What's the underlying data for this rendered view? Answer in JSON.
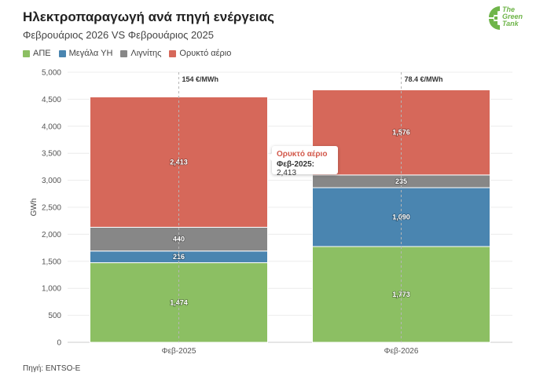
{
  "header": {
    "title": "Ηλεκτροπαραγωγή ανά πηγή ενέργειας",
    "subtitle": "Φεβρουάριος 2026 VS Φεβρουάριος 2025"
  },
  "logo": {
    "line1": "The",
    "line2": "Green",
    "line3": "Tank"
  },
  "source": "Πηγή: ENTSO-E",
  "colors": {
    "ape": "#8cbf63",
    "hydro": "#4a85b0",
    "lignite": "#878787",
    "gas": "#d6685a"
  },
  "tooltip": {
    "title": "Ορυκτό αέριο",
    "label": "Φεβ-2025:",
    "value": "2,413"
  },
  "chart_data": {
    "type": "bar",
    "stacked": true,
    "title": "Ηλεκτροπαραγωγή ανά πηγή ενέργειας",
    "ylabel": "GWh",
    "xlabel": "",
    "ylim": [
      0,
      5000
    ],
    "yticks": [
      0,
      500,
      1000,
      1500,
      2000,
      2500,
      3000,
      3500,
      4000,
      4500,
      5000
    ],
    "ytick_labels": [
      "0",
      "500",
      "1,000",
      "1,500",
      "2,000",
      "2,500",
      "3,000",
      "3,500",
      "4,000",
      "4,500",
      "5,000"
    ],
    "categories": [
      "Φεβ-2025",
      "Φεβ-2026"
    ],
    "annotations": [
      "154 €/MWh",
      "78.4 €/MWh"
    ],
    "series": [
      {
        "name": "ΑΠΕ",
        "key": "ape",
        "values": [
          1474,
          1773
        ],
        "labels": [
          "1,474",
          "1,773"
        ]
      },
      {
        "name": "Μεγάλα ΥΗ",
        "key": "hydro",
        "values": [
          216,
          1090
        ],
        "labels": [
          "216",
          "1,090"
        ]
      },
      {
        "name": "Λιγνίτης",
        "key": "lignite",
        "values": [
          440,
          235
        ],
        "labels": [
          "440",
          "235"
        ]
      },
      {
        "name": "Ορυκτό αέριο",
        "key": "gas",
        "values": [
          2413,
          1576
        ],
        "labels": [
          "2,413",
          "1,576"
        ]
      }
    ]
  }
}
